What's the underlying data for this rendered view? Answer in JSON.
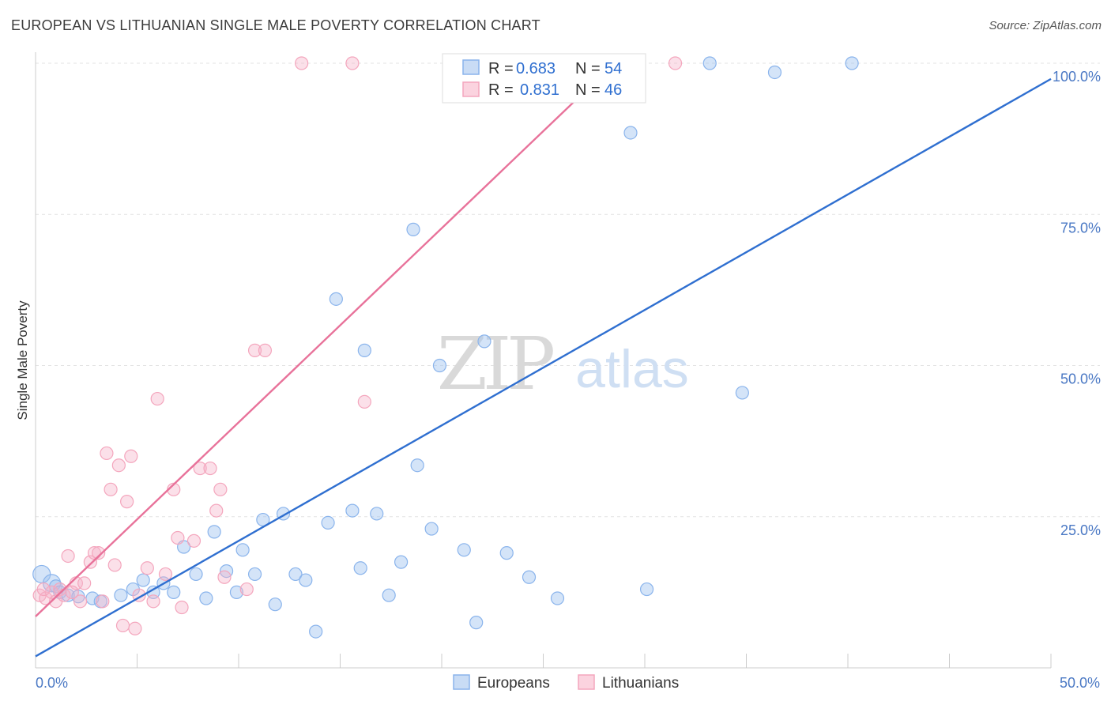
{
  "title": "EUROPEAN VS LITHUANIAN SINGLE MALE POVERTY CORRELATION CHART",
  "source": "Source: ZipAtlas.com",
  "watermark": {
    "zip": "ZIP",
    "atlas": "atlas"
  },
  "legend": {
    "rows": [
      {
        "r_label": "R =",
        "r_value": "0.683",
        "n_label": "N =",
        "n_value": "54",
        "color": "#8ab4ec"
      },
      {
        "r_label": "R =",
        "r_value": "0.831",
        "n_label": "N =",
        "n_value": "46",
        "color": "#f4a6bd"
      }
    ]
  },
  "bottom_legend": [
    {
      "label": "Europeans",
      "color": "#8ab4ec"
    },
    {
      "label": "Lithuanians",
      "color": "#f4a6bd"
    }
  ],
  "chart_data": {
    "type": "scatter",
    "title": "EUROPEAN VS LITHUANIAN SINGLE MALE POVERTY CORRELATION CHART",
    "xlabel": "",
    "ylabel": "Single Male Poverty",
    "xlim": [
      0,
      50
    ],
    "ylim": [
      0,
      100
    ],
    "x_tick_labels": [
      {
        "value": 0,
        "label": "0.0%"
      },
      {
        "value": 50,
        "label": "50.0%"
      }
    ],
    "y_tick_labels": [
      {
        "value": 25,
        "label": "25.0%"
      },
      {
        "value": 50,
        "label": "50.0%"
      },
      {
        "value": 75,
        "label": "75.0%"
      },
      {
        "value": 100,
        "label": "100.0%"
      }
    ],
    "grid": true,
    "legend_position": "top-center",
    "series": [
      {
        "name": "Europeans",
        "color": "#8ab4ec",
        "line_color": "#2f6fd0",
        "trend": [
          [
            0,
            1.9
          ],
          [
            50,
            97.4
          ]
        ],
        "points": [
          [
            0.3,
            15.5
          ],
          [
            0.8,
            14.0
          ],
          [
            1.0,
            13.5
          ],
          [
            1.2,
            12.5
          ],
          [
            1.6,
            12.0
          ],
          [
            2.1,
            11.8
          ],
          [
            2.8,
            11.5
          ],
          [
            3.2,
            11.0
          ],
          [
            4.2,
            12.0
          ],
          [
            4.8,
            13.0
          ],
          [
            5.3,
            14.5
          ],
          [
            5.8,
            12.5
          ],
          [
            6.3,
            14.0
          ],
          [
            6.8,
            12.5
          ],
          [
            7.3,
            20.0
          ],
          [
            7.9,
            15.5
          ],
          [
            8.4,
            11.5
          ],
          [
            8.8,
            22.5
          ],
          [
            9.4,
            16.0
          ],
          [
            9.9,
            12.5
          ],
          [
            10.2,
            19.5
          ],
          [
            10.8,
            15.5
          ],
          [
            11.2,
            24.5
          ],
          [
            11.8,
            10.5
          ],
          [
            12.2,
            25.5
          ],
          [
            12.8,
            15.5
          ],
          [
            13.3,
            14.5
          ],
          [
            13.8,
            6.0
          ],
          [
            14.4,
            24.0
          ],
          [
            14.8,
            61.0
          ],
          [
            15.6,
            26.0
          ],
          [
            16.0,
            16.5
          ],
          [
            16.2,
            52.5
          ],
          [
            16.8,
            25.5
          ],
          [
            17.4,
            12.0
          ],
          [
            18.0,
            17.5
          ],
          [
            18.6,
            72.5
          ],
          [
            18.8,
            33.5
          ],
          [
            19.5,
            23.0
          ],
          [
            19.9,
            50.0
          ],
          [
            21.1,
            19.5
          ],
          [
            21.7,
            7.5
          ],
          [
            22.1,
            54.0
          ],
          [
            23.2,
            19.0
          ],
          [
            24.3,
            15.0
          ],
          [
            25.7,
            11.5
          ],
          [
            28.8,
            100.0
          ],
          [
            29.3,
            88.5
          ],
          [
            30.1,
            13.0
          ],
          [
            33.2,
            100.0
          ],
          [
            34.8,
            45.5
          ],
          [
            36.4,
            98.5
          ],
          [
            40.2,
            100.0
          ],
          [
            21.0,
            100.0
          ]
        ]
      },
      {
        "name": "Lithuanians",
        "color": "#f4a6bd",
        "line_color": "#e8729a",
        "trend": [
          [
            0,
            8.5
          ],
          [
            28.5,
            100.0
          ]
        ],
        "points": [
          [
            0.2,
            12.0
          ],
          [
            0.5,
            11.5
          ],
          [
            0.8,
            12.5
          ],
          [
            1.0,
            11.0
          ],
          [
            1.2,
            13.0
          ],
          [
            1.4,
            12.0
          ],
          [
            1.6,
            18.5
          ],
          [
            2.0,
            14.0
          ],
          [
            2.2,
            11.0
          ],
          [
            2.4,
            14.0
          ],
          [
            2.7,
            17.5
          ],
          [
            2.9,
            19.0
          ],
          [
            3.1,
            19.0
          ],
          [
            3.3,
            11.0
          ],
          [
            3.5,
            35.5
          ],
          [
            3.7,
            29.5
          ],
          [
            3.9,
            17.0
          ],
          [
            4.1,
            33.5
          ],
          [
            4.3,
            7.0
          ],
          [
            4.5,
            27.5
          ],
          [
            4.7,
            35.0
          ],
          [
            4.9,
            6.5
          ],
          [
            5.1,
            12.0
          ],
          [
            5.5,
            16.5
          ],
          [
            5.8,
            11.0
          ],
          [
            6.0,
            44.5
          ],
          [
            6.4,
            15.5
          ],
          [
            6.8,
            29.5
          ],
          [
            7.0,
            21.5
          ],
          [
            7.2,
            10.0
          ],
          [
            7.8,
            21.0
          ],
          [
            8.1,
            33.0
          ],
          [
            8.6,
            33.0
          ],
          [
            8.9,
            26.0
          ],
          [
            9.1,
            29.5
          ],
          [
            9.3,
            15.0
          ],
          [
            10.4,
            13.0
          ],
          [
            10.8,
            52.5
          ],
          [
            11.3,
            52.5
          ],
          [
            13.1,
            100.0
          ],
          [
            15.6,
            100.0
          ],
          [
            16.2,
            44.0
          ],
          [
            28.2,
            100.0
          ],
          [
            31.5,
            100.0
          ],
          [
            0.4,
            13.0
          ],
          [
            1.8,
            12.5
          ]
        ]
      }
    ]
  }
}
